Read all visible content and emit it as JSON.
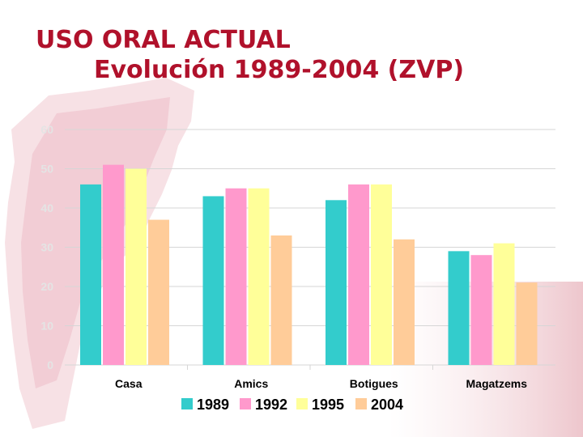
{
  "slide": {
    "title_line1": "USO ORAL ACTUAL",
    "title_line2": "Evolución 1989-2004 (ZVP)",
    "title_color": "#b0112b"
  },
  "chart_data": {
    "type": "bar",
    "title": "USO ORAL ACTUAL — Evolución 1989-2004 (ZVP)",
    "xlabel": "",
    "ylabel": "",
    "ylim": [
      0,
      60
    ],
    "yticks": [
      0,
      10,
      20,
      30,
      40,
      50,
      60
    ],
    "grid": true,
    "legend_position": "bottom",
    "categories": [
      "Casa",
      "Amics",
      "Botigues",
      "Magatzems"
    ],
    "series": [
      {
        "name": "1989",
        "color": "#33cccc",
        "values": [
          46,
          43,
          42,
          29
        ]
      },
      {
        "name": "1992",
        "color": "#ff99cc",
        "values": [
          51,
          45,
          46,
          28
        ]
      },
      {
        "name": "1995",
        "color": "#ffff99",
        "values": [
          50,
          45,
          46,
          31
        ]
      },
      {
        "name": "2004",
        "color": "#ffcc99",
        "values": [
          37,
          33,
          32,
          21
        ]
      }
    ]
  }
}
